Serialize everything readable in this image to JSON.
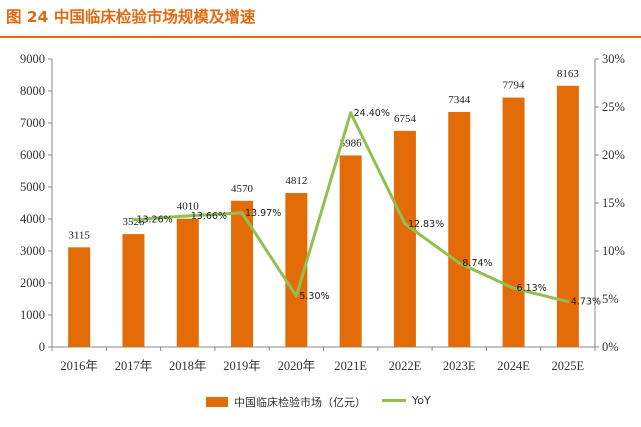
{
  "title": "图 24 中国临床检验市场规模及增速",
  "colors": {
    "title": "#e06a12",
    "bar": "#e36c09",
    "line": "#92c050",
    "axis": "#888888"
  },
  "chart_data": {
    "type": "bar",
    "categories": [
      "2016年",
      "2017年",
      "2018年",
      "2019年",
      "2020年",
      "2021E",
      "2022E",
      "2023E",
      "2024E",
      "2025E"
    ],
    "series": [
      {
        "name": "中国临床检验市场（亿元）",
        "type": "bar",
        "axis": "left",
        "values": [
          3115,
          3528,
          4010,
          4570,
          4812,
          5986,
          6754,
          7344,
          7794,
          8163
        ],
        "labels": [
          "3115",
          "3528",
          "4010",
          "4570",
          "4812",
          "5986",
          "6754",
          "7344",
          "7794",
          "8163"
        ]
      },
      {
        "name": "YoY",
        "type": "line",
        "axis": "right",
        "values": [
          null,
          13.26,
          13.66,
          13.97,
          5.3,
          24.4,
          12.83,
          8.74,
          6.13,
          4.73
        ],
        "labels": [
          "",
          "13.26%",
          "13.66%",
          "13.97%",
          "5.30%",
          "24.40%",
          "12.83%",
          "8.74%",
          "6.13%",
          "4.73%"
        ]
      }
    ],
    "y_left": {
      "ylim": [
        0,
        9000
      ],
      "ticks": [
        "0",
        "1000",
        "2000",
        "3000",
        "4000",
        "5000",
        "6000",
        "7000",
        "8000",
        "9000"
      ]
    },
    "y_right": {
      "ylim": [
        0,
        30
      ],
      "ticks": [
        "0%",
        "5%",
        "10%",
        "15%",
        "20%",
        "25%",
        "30%"
      ]
    },
    "xlabel": "",
    "ylabel": "",
    "legend_position": "bottom",
    "grid": false
  }
}
